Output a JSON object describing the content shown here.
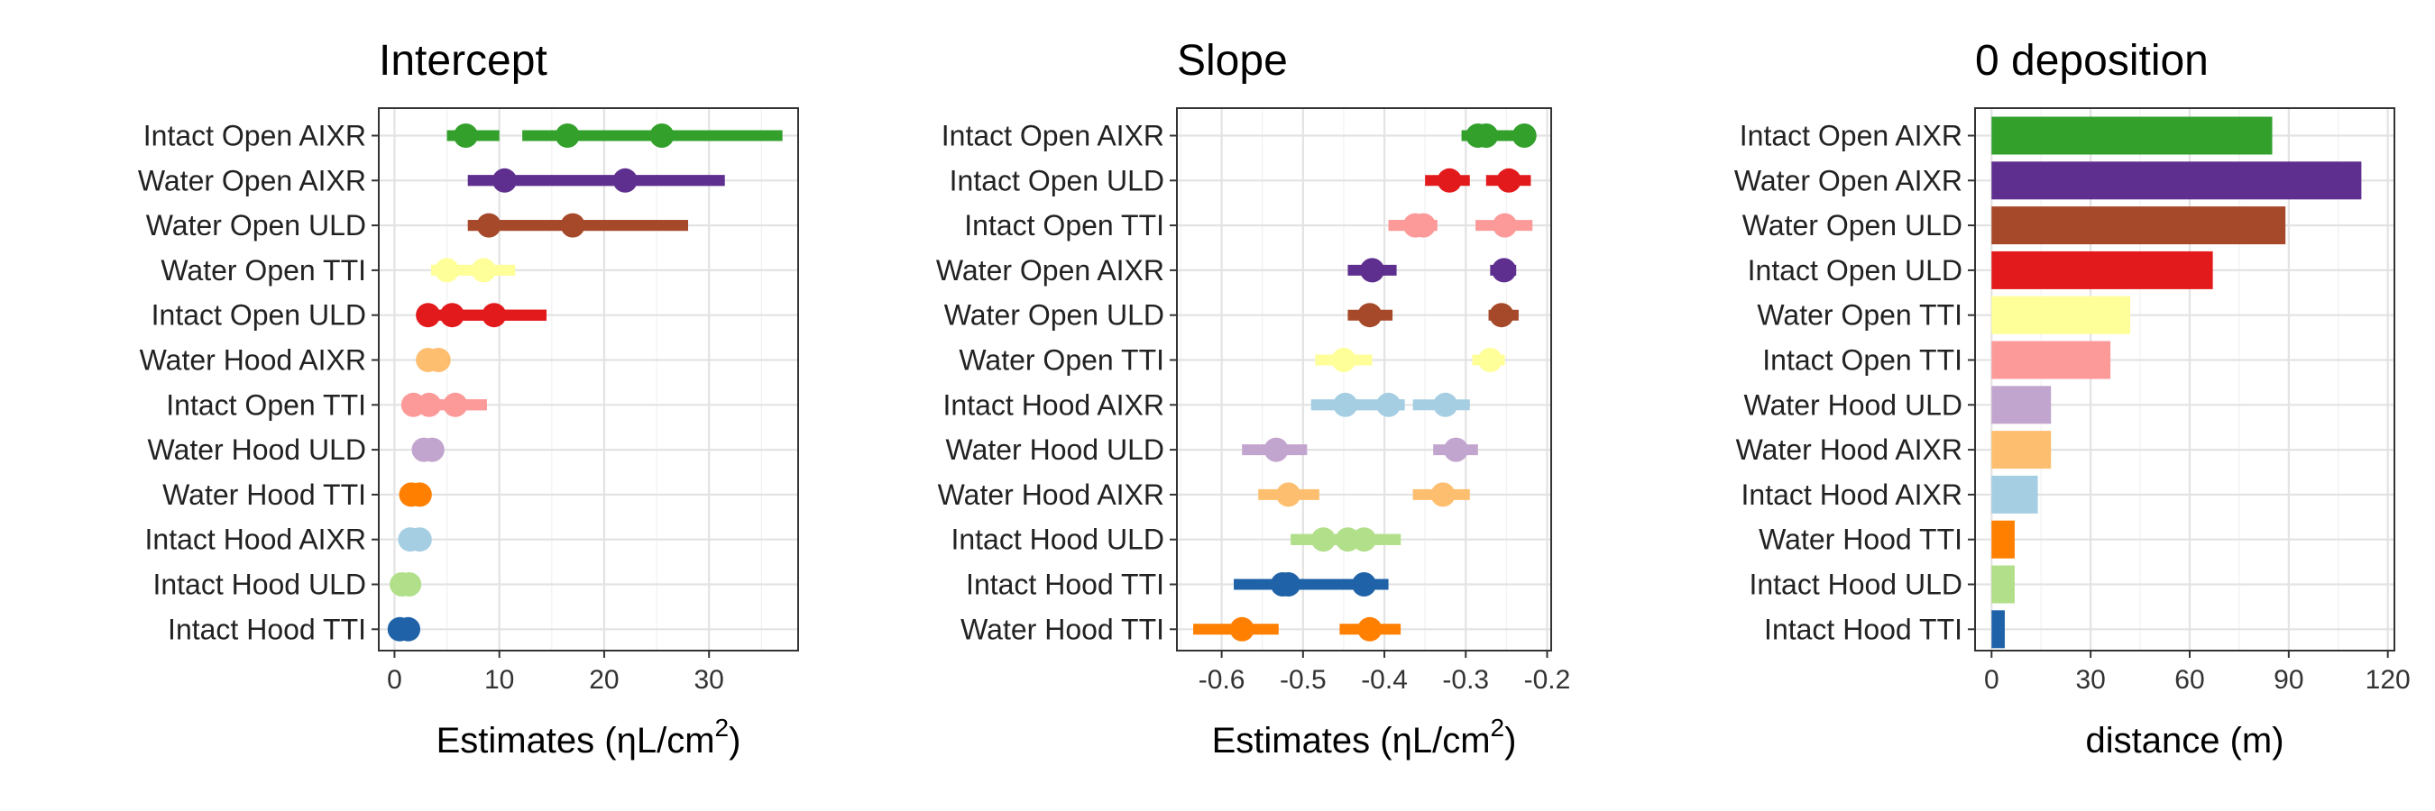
{
  "palette": {
    "Intact Open AIXR": "#33a02c",
    "Water Open AIXR": "#5e2f8f",
    "Water Open ULD": "#a6492a",
    "Water Open TTI": "#ffff99",
    "Intact Open ULD": "#e31a1c",
    "Water Hood AIXR": "#fdbf6f",
    "Intact Open TTI": "#fb9a99",
    "Water Hood ULD": "#c2a5cf",
    "Water Hood TTI": "#ff7f00",
    "Intact Hood AIXR": "#a6cee3",
    "Intact Hood ULD": "#b2df8a",
    "Intact Hood TTI": "#1f62a8"
  },
  "chart_data": [
    {
      "type": "interval",
      "title": "Intercept",
      "xlabel": "Estimates (ηL/cm",
      "xlabel_sup": "2",
      "xlabel_suffix": ")",
      "xlim": [
        -1.5,
        38.5
      ],
      "xticks": [
        0,
        10,
        20,
        30
      ],
      "xtick_labels": [
        "0",
        "10",
        "20",
        "30"
      ],
      "categories": [
        "Intact Open AIXR",
        "Water Open AIXR",
        "Water Open ULD",
        "Water Open TTI",
        "Intact Open ULD",
        "Water Hood AIXR",
        "Intact Open TTI",
        "Water Hood ULD",
        "Water Hood TTI",
        "Intact Hood AIXR",
        "Intact Hood ULD",
        "Intact Hood TTI"
      ],
      "intervals": [
        {
          "category": "Intact Open AIXR",
          "lo": 5,
          "hi": 10,
          "est": 6.8
        },
        {
          "category": "Intact Open AIXR",
          "lo": 12.2,
          "hi": 37,
          "est": 16.5
        },
        {
          "category": "Intact Open AIXR",
          "lo": 12.2,
          "hi": 37,
          "est": 25.5
        },
        {
          "category": "Water Open AIXR",
          "lo": 7,
          "hi": 31.5,
          "est": 10.5
        },
        {
          "category": "Water Open AIXR",
          "lo": 7,
          "hi": 31.5,
          "est": 22
        },
        {
          "category": "Water Open ULD",
          "lo": 7,
          "hi": 28,
          "est": 9
        },
        {
          "category": "Water Open ULD",
          "lo": 7,
          "hi": 28,
          "est": 17
        },
        {
          "category": "Water Open TTI",
          "lo": 3.5,
          "hi": 11.5,
          "est": 5
        },
        {
          "category": "Water Open TTI",
          "lo": 3.5,
          "hi": 11.5,
          "est": 8.5
        },
        {
          "category": "Intact Open ULD",
          "lo": 2.5,
          "hi": 14.5,
          "est": 3.2
        },
        {
          "category": "Intact Open ULD",
          "lo": 2.5,
          "hi": 14.5,
          "est": 5.5
        },
        {
          "category": "Intact Open ULD",
          "lo": 2.5,
          "hi": 14.5,
          "est": 9.5
        },
        {
          "category": "Water Hood AIXR",
          "lo": 2.5,
          "hi": 5,
          "est": 3.2
        },
        {
          "category": "Water Hood AIXR",
          "lo": 2.5,
          "hi": 5,
          "est": 4.2
        },
        {
          "category": "Intact Open TTI",
          "lo": 1,
          "hi": 8.8,
          "est": 1.8
        },
        {
          "category": "Intact Open TTI",
          "lo": 1,
          "hi": 8.8,
          "est": 3.3
        },
        {
          "category": "Intact Open TTI",
          "lo": 1,
          "hi": 8.8,
          "est": 5.8
        },
        {
          "category": "Water Hood ULD",
          "lo": 2,
          "hi": 4.5,
          "est": 2.8
        },
        {
          "category": "Water Hood ULD",
          "lo": 2,
          "hi": 4.5,
          "est": 3.6
        },
        {
          "category": "Water Hood TTI",
          "lo": 0.8,
          "hi": 3.2,
          "est": 1.6
        },
        {
          "category": "Water Hood TTI",
          "lo": 0.8,
          "hi": 3.2,
          "est": 2.4
        },
        {
          "category": "Intact Hood AIXR",
          "lo": 0.8,
          "hi": 3.2,
          "est": 1.5
        },
        {
          "category": "Intact Hood AIXR",
          "lo": 0.8,
          "hi": 3.2,
          "est": 2.4
        },
        {
          "category": "Intact Hood ULD",
          "lo": 0,
          "hi": 2.2,
          "est": 0.7
        },
        {
          "category": "Intact Hood ULD",
          "lo": 0,
          "hi": 2.2,
          "est": 1.4
        },
        {
          "category": "Intact Hood TTI",
          "lo": -0.3,
          "hi": 2.2,
          "est": 0.5
        },
        {
          "category": "Intact Hood TTI",
          "lo": -0.3,
          "hi": 2.2,
          "est": 1.3
        }
      ]
    },
    {
      "type": "interval",
      "title": "Slope",
      "xlabel": "Estimates (ηL/cm",
      "xlabel_sup": "2",
      "xlabel_suffix": ")",
      "xlim": [
        -0.655,
        -0.195
      ],
      "xticks": [
        -0.6,
        -0.5,
        -0.4,
        -0.3,
        -0.2
      ],
      "xtick_labels": [
        "-0.6",
        "-0.5",
        "-0.4",
        "-0.3",
        "-0.2"
      ],
      "categories": [
        "Intact Open AIXR",
        "Intact Open ULD",
        "Intact Open TTI",
        "Water Open AIXR",
        "Water Open ULD",
        "Water Open TTI",
        "Intact Hood AIXR",
        "Water Hood ULD",
        "Water Hood AIXR",
        "Intact Hood ULD",
        "Intact Hood TTI",
        "Water Hood TTI"
      ],
      "intervals": [
        {
          "category": "Intact Open AIXR",
          "lo": -0.305,
          "hi": -0.215,
          "est": -0.285
        },
        {
          "category": "Intact Open AIXR",
          "lo": -0.305,
          "hi": -0.215,
          "est": -0.275
        },
        {
          "category": "Intact Open AIXR",
          "lo": -0.305,
          "hi": -0.215,
          "est": -0.228
        },
        {
          "category": "Intact Open ULD",
          "lo": -0.35,
          "hi": -0.295,
          "est": -0.32
        },
        {
          "category": "Intact Open ULD",
          "lo": -0.275,
          "hi": -0.22,
          "est": -0.247
        },
        {
          "category": "Intact Open TTI",
          "lo": -0.395,
          "hi": -0.335,
          "est": -0.362
        },
        {
          "category": "Intact Open TTI",
          "lo": -0.395,
          "hi": -0.335,
          "est": -0.352
        },
        {
          "category": "Intact Open TTI",
          "lo": -0.288,
          "hi": -0.218,
          "est": -0.252
        },
        {
          "category": "Water Open AIXR",
          "lo": -0.445,
          "hi": -0.385,
          "est": -0.415
        },
        {
          "category": "Water Open AIXR",
          "lo": -0.27,
          "hi": -0.238,
          "est": -0.253
        },
        {
          "category": "Water Open ULD",
          "lo": -0.445,
          "hi": -0.39,
          "est": -0.418
        },
        {
          "category": "Water Open ULD",
          "lo": -0.272,
          "hi": -0.235,
          "est": -0.256
        },
        {
          "category": "Water Open TTI",
          "lo": -0.485,
          "hi": -0.415,
          "est": -0.45
        },
        {
          "category": "Water Open TTI",
          "lo": -0.292,
          "hi": -0.252,
          "est": -0.27
        },
        {
          "category": "Intact Hood AIXR",
          "lo": -0.49,
          "hi": -0.375,
          "est": -0.448
        },
        {
          "category": "Intact Hood AIXR",
          "lo": -0.49,
          "hi": -0.375,
          "est": -0.395
        },
        {
          "category": "Intact Hood AIXR",
          "lo": -0.365,
          "hi": -0.295,
          "est": -0.325
        },
        {
          "category": "Water Hood ULD",
          "lo": -0.575,
          "hi": -0.495,
          "est": -0.533
        },
        {
          "category": "Water Hood ULD",
          "lo": -0.34,
          "hi": -0.285,
          "est": -0.312
        },
        {
          "category": "Water Hood AIXR",
          "lo": -0.555,
          "hi": -0.48,
          "est": -0.518
        },
        {
          "category": "Water Hood AIXR",
          "lo": -0.365,
          "hi": -0.295,
          "est": -0.328
        },
        {
          "category": "Intact Hood ULD",
          "lo": -0.515,
          "hi": -0.38,
          "est": -0.475
        },
        {
          "category": "Intact Hood ULD",
          "lo": -0.515,
          "hi": -0.38,
          "est": -0.445
        },
        {
          "category": "Intact Hood ULD",
          "lo": -0.515,
          "hi": -0.38,
          "est": -0.425
        },
        {
          "category": "Intact Hood TTI",
          "lo": -0.585,
          "hi": -0.51,
          "est": -0.525
        },
        {
          "category": "Intact Hood TTI",
          "lo": -0.585,
          "hi": -0.51,
          "est": -0.518
        },
        {
          "category": "Intact Hood TTI",
          "lo": -0.51,
          "hi": -0.395,
          "est": -0.425
        },
        {
          "category": "Water Hood TTI",
          "lo": -0.635,
          "hi": -0.53,
          "est": -0.575
        },
        {
          "category": "Water Hood TTI",
          "lo": -0.455,
          "hi": -0.38,
          "est": -0.418
        }
      ]
    },
    {
      "type": "bar",
      "orientation": "horizontal",
      "title": "0 deposition",
      "xlabel": "distance (m)",
      "xlim": [
        -5,
        122
      ],
      "xticks": [
        0,
        30,
        60,
        90,
        120
      ],
      "xtick_labels": [
        "0",
        "30",
        "60",
        "90",
        "120"
      ],
      "categories": [
        "Intact Open AIXR",
        "Water Open AIXR",
        "Water Open ULD",
        "Intact Open ULD",
        "Water Open TTI",
        "Intact Open TTI",
        "Water Hood ULD",
        "Water Hood AIXR",
        "Intact Hood AIXR",
        "Water Hood TTI",
        "Intact Hood ULD",
        "Intact Hood TTI"
      ],
      "values": [
        85,
        112,
        89,
        67,
        42,
        36,
        18,
        18,
        14,
        7,
        7,
        4
      ]
    }
  ]
}
